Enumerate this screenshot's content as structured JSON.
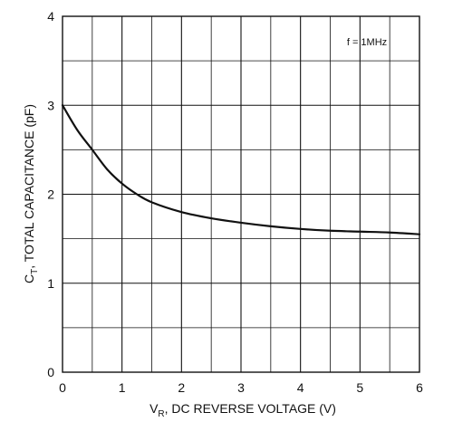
{
  "chart_data": {
    "type": "line",
    "xlabel": {
      "main": "V",
      "sub": "R",
      "rest": ", DC REVERSE VOLTAGE (V)"
    },
    "ylabel": {
      "main": "C",
      "sub": "T",
      "rest": ", TOTAL CAPACITANCE (pF)"
    },
    "annotation": "f = 1MHz",
    "xlim": [
      0,
      6
    ],
    "ylim": [
      0,
      4
    ],
    "x_ticks": [
      "0",
      "1",
      "2",
      "3",
      "4",
      "5",
      "6"
    ],
    "y_ticks": [
      "0",
      "1",
      "2",
      "3",
      "4"
    ],
    "x_minor_step": 0.5,
    "y_minor_step": 0.5,
    "grid": true,
    "series": [
      {
        "x": [
          0,
          0.25,
          0.5,
          0.75,
          1.0,
          1.25,
          1.5,
          2.0,
          2.5,
          3.0,
          3.5,
          4.0,
          4.5,
          5.0,
          5.5,
          6.0
        ],
        "y": [
          3.0,
          2.72,
          2.5,
          2.28,
          2.12,
          2.0,
          1.91,
          1.8,
          1.73,
          1.68,
          1.64,
          1.61,
          1.59,
          1.58,
          1.57,
          1.55
        ]
      }
    ],
    "colors": {
      "line": "#111111",
      "grid": "#111111",
      "background": "#ffffff"
    }
  }
}
